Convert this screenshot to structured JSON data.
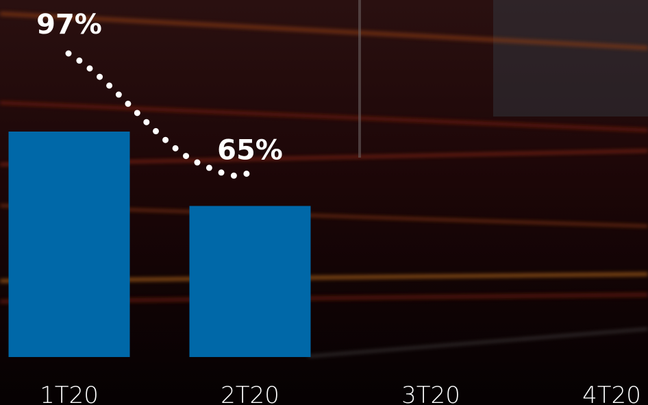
{
  "chart_data": {
    "type": "bar",
    "categories": [
      "1T20",
      "2T20",
      "3T20",
      "4T20"
    ],
    "values": [
      97,
      65,
      null,
      null
    ],
    "value_labels": [
      "97%",
      "65%",
      null,
      null
    ],
    "color": "#0068a8"
  }
}
